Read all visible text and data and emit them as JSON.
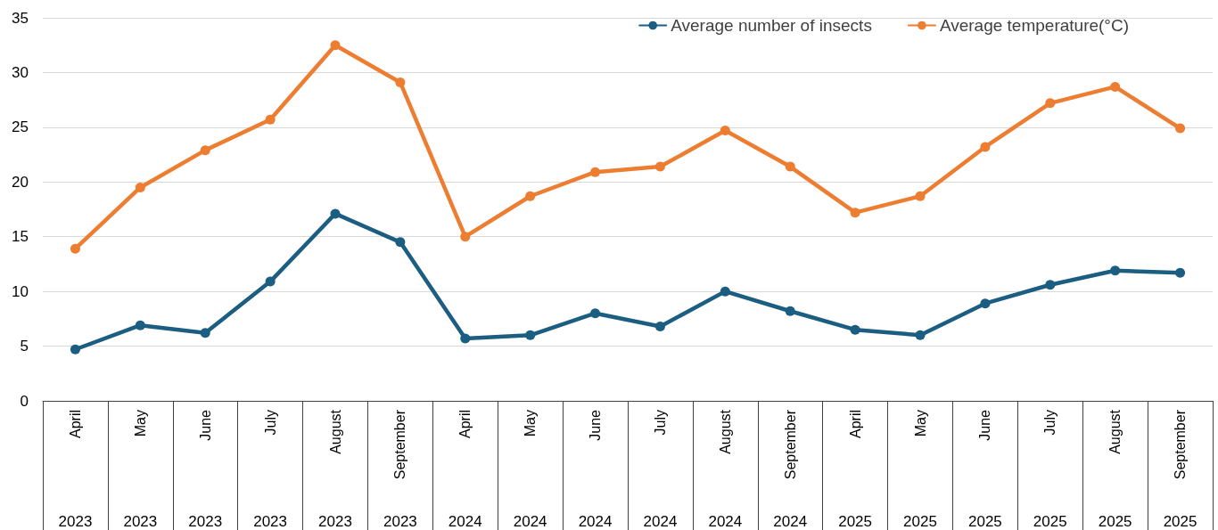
{
  "chart_data": {
    "type": "line",
    "categories": [
      "April 2023",
      "May 2023",
      "June 2023",
      "July 2023",
      "August 2023",
      "September 2023",
      "April 2024",
      "May 2024",
      "June 2024",
      "July 2024",
      "August 2024",
      "September 2024",
      "April 2025",
      "May 2025",
      "June 2025",
      "July 2025",
      "August 2025",
      "September 2025"
    ],
    "series": [
      {
        "name": "Average number of insects",
        "color": "#1b5e82",
        "values": [
          4.7,
          6.9,
          6.2,
          10.9,
          17.1,
          14.5,
          5.7,
          6.0,
          8.0,
          6.8,
          10.0,
          8.2,
          6.5,
          6.0,
          8.9,
          10.6,
          11.9,
          11.7
        ]
      },
      {
        "name": "Average temperature(°C)",
        "color": "#ed7d31",
        "values": [
          13.9,
          19.5,
          22.9,
          25.7,
          32.5,
          29.1,
          15.0,
          18.7,
          20.9,
          21.4,
          24.7,
          21.4,
          17.2,
          18.7,
          23.2,
          27.2,
          28.7,
          24.9
        ]
      }
    ],
    "ylim": [
      0,
      35
    ],
    "yticks": [
      0,
      5,
      10,
      15,
      20,
      25,
      30,
      35
    ],
    "grid": "y",
    "legend": "top right",
    "marker": "circle",
    "line_style": "solid"
  }
}
